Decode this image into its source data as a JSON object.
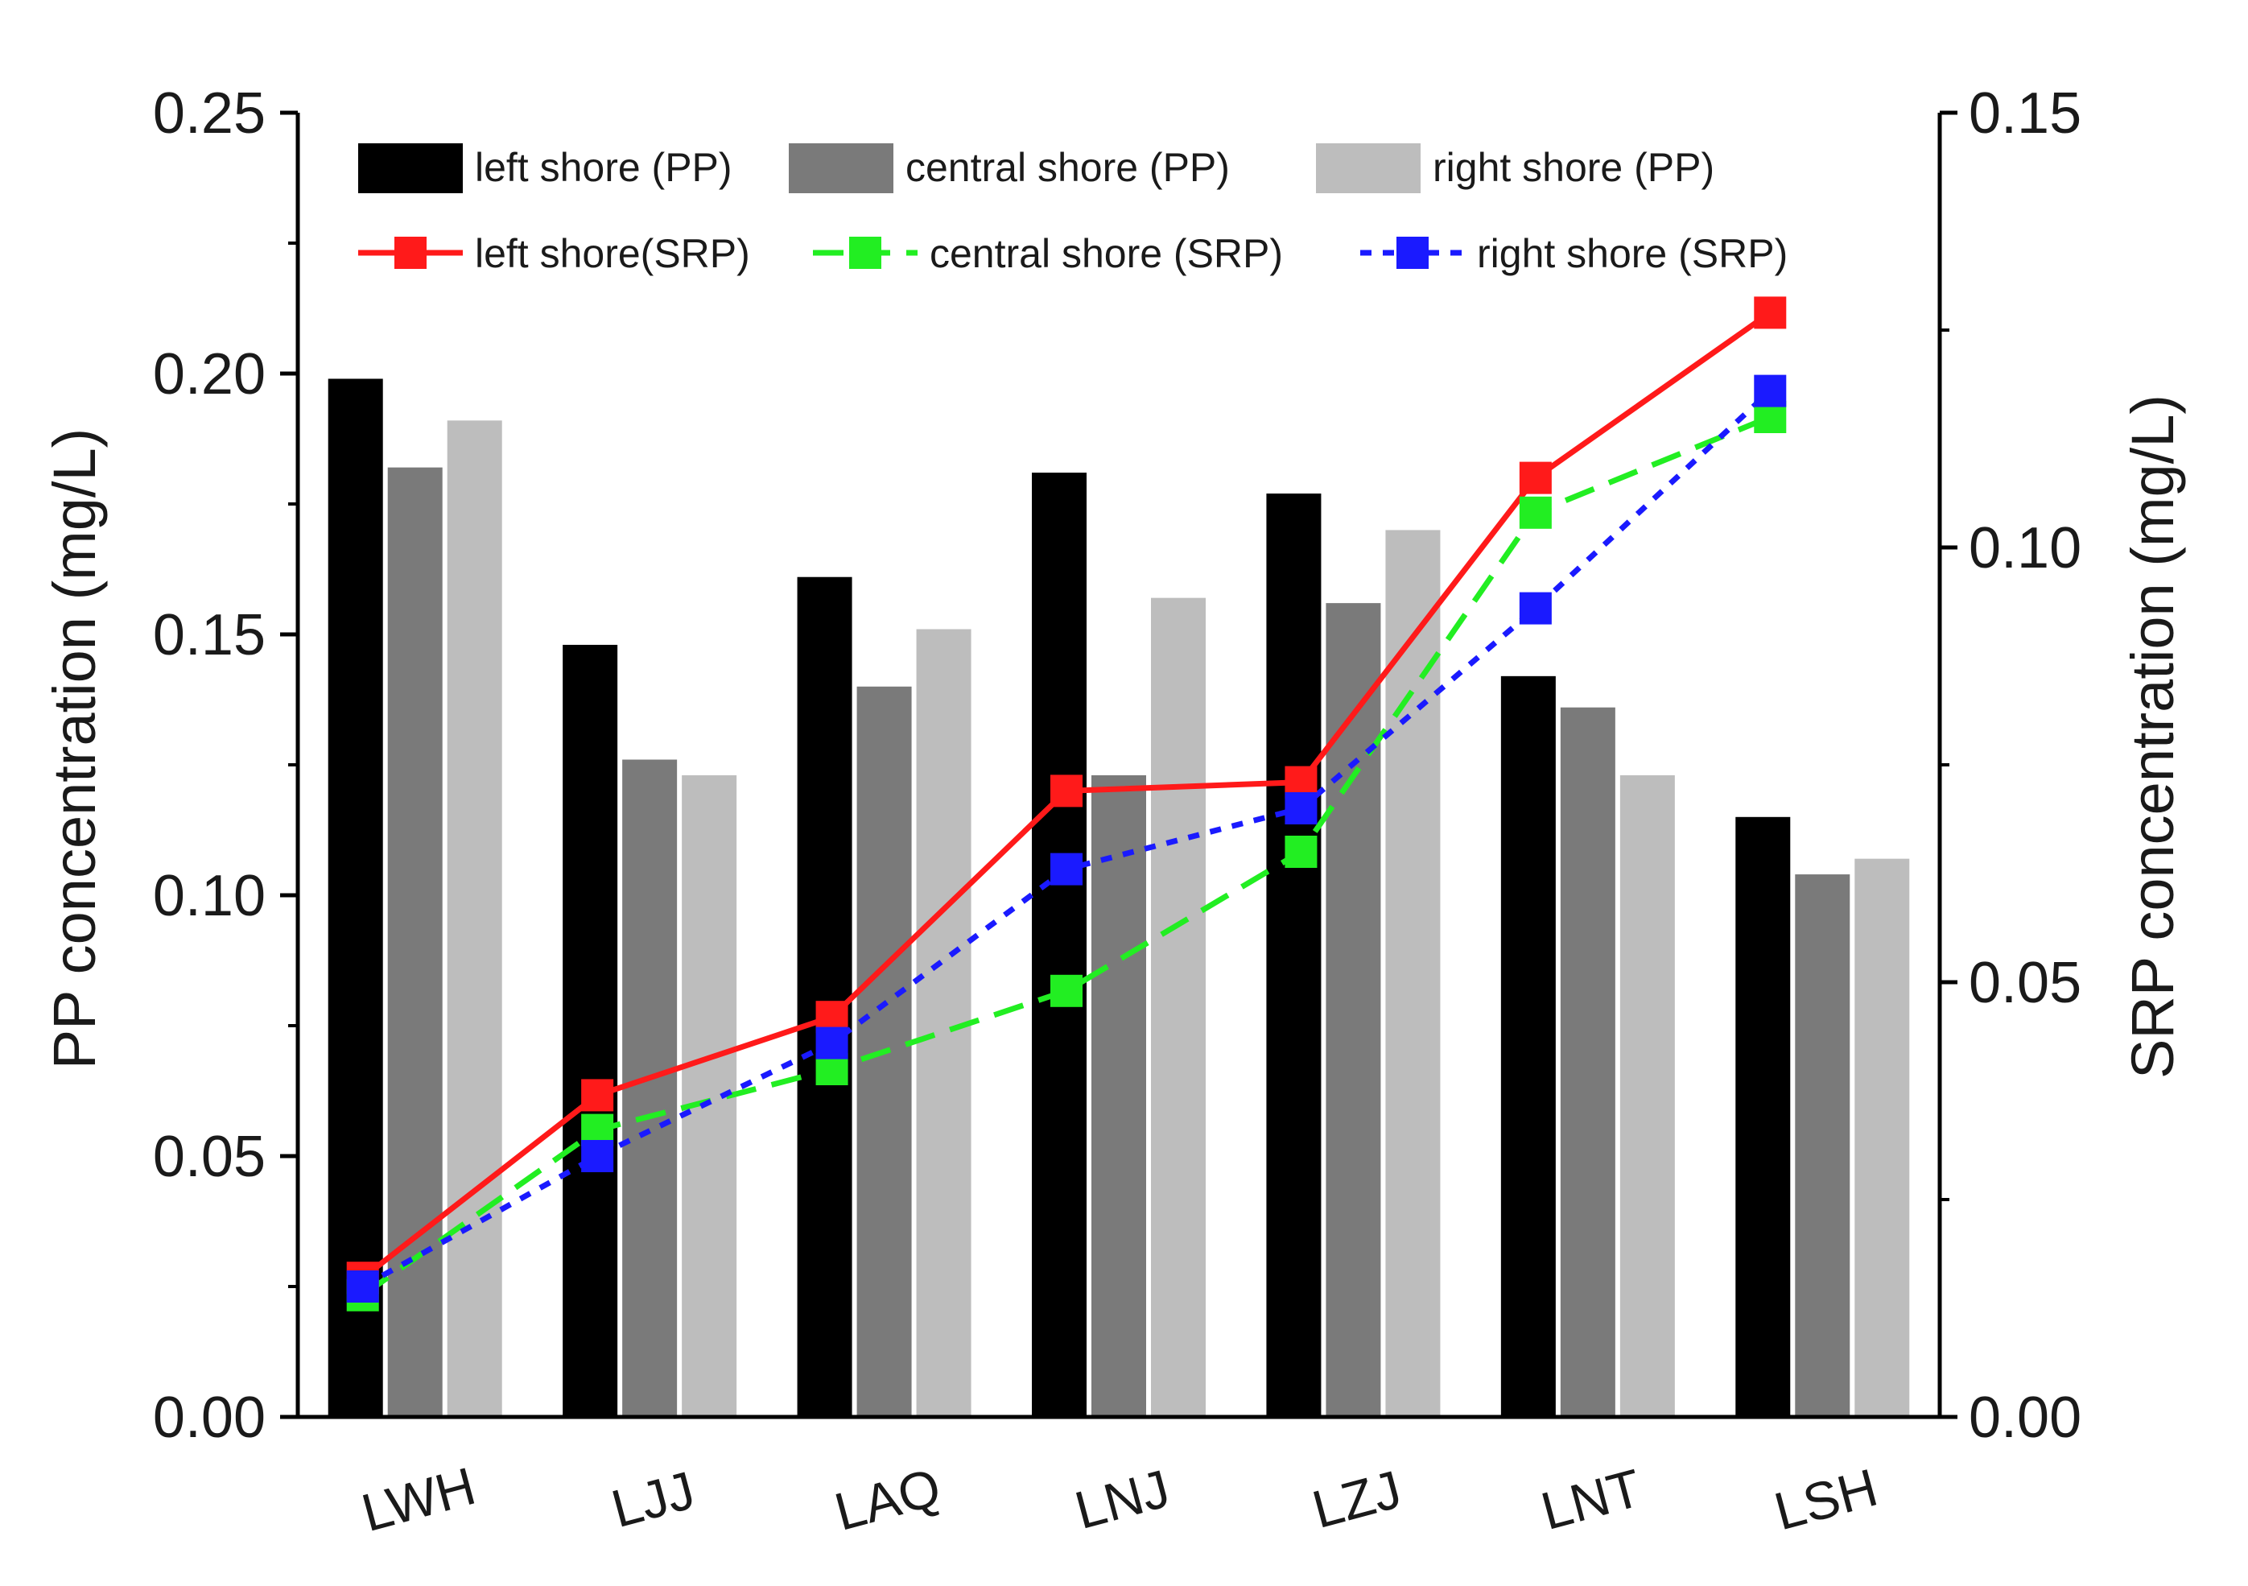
{
  "chart_data": {
    "type": "bar",
    "categories": [
      "LWH",
      "LJJ",
      "LAQ",
      "LNJ",
      "LZJ",
      "LNT",
      "LSH"
    ],
    "bar_series": [
      {
        "name": "left shore (PP)",
        "color": "#000000",
        "values": [
          0.199,
          0.148,
          0.161,
          0.181,
          0.177,
          0.142,
          0.115
        ]
      },
      {
        "name": "central shore (PP)",
        "color": "#7a7a7a",
        "values": [
          0.182,
          0.126,
          0.14,
          0.123,
          0.156,
          0.136,
          0.104
        ]
      },
      {
        "name": "right shore (PP)",
        "color": "#bdbdbd",
        "values": [
          0.191,
          0.123,
          0.151,
          0.157,
          0.17,
          0.123,
          0.107
        ]
      }
    ],
    "line_series": [
      {
        "name": "left shore(SRP)",
        "color": "#ff1a1a",
        "dash": "solid",
        "values": [
          0.016,
          0.037,
          0.046,
          0.072,
          0.073,
          0.108,
          0.127
        ]
      },
      {
        "name": "central shore (SRP)",
        "color": "#22ee22",
        "dash": "dashed",
        "values": [
          0.014,
          0.033,
          0.04,
          0.049,
          0.065,
          0.104,
          0.115
        ]
      },
      {
        "name": "right shore (SRP)",
        "color": "#1a1aff",
        "dash": "dotted",
        "values": [
          0.015,
          0.03,
          0.043,
          0.063,
          0.07,
          0.093,
          0.118
        ]
      }
    ],
    "ylabel_left": "PP concentration (mg/L)",
    "ylabel_right": "SRP concentration (mg/L)",
    "ylim_left": [
      0,
      0.25
    ],
    "ylim_right": [
      0,
      0.15
    ],
    "yticks_left": [
      "0.00",
      "0.05",
      "0.10",
      "0.15",
      "0.20",
      "0.25"
    ],
    "yticks_right": [
      "0.00",
      "0.05",
      "0.10",
      "0.15"
    ],
    "grid": false,
    "legend_position": "top"
  }
}
